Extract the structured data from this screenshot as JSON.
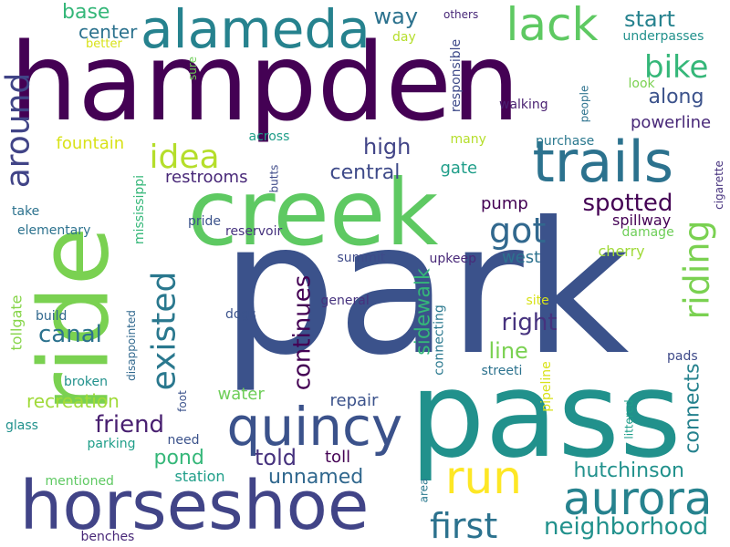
{
  "words": [
    {
      "text": "park",
      "color": "#3b528b"
    },
    {
      "text": "pass",
      "color": "#21918c"
    },
    {
      "text": "hampden",
      "color": "#440154"
    },
    {
      "text": "ride",
      "color": "#7ad151"
    },
    {
      "text": "creek",
      "color": "#5ec962"
    },
    {
      "text": "horseshoe",
      "color": "#414487"
    },
    {
      "text": "trails",
      "color": "#2c728e"
    },
    {
      "text": "alameda",
      "color": "#26828e"
    },
    {
      "text": "quincy",
      "color": "#3b528b"
    },
    {
      "text": "run",
      "color": "#fde725"
    },
    {
      "text": "aurora",
      "color": "#26828e"
    },
    {
      "text": "lack",
      "color": "#5ec962"
    },
    {
      "text": "existed",
      "color": "#2a788e"
    },
    {
      "text": "around",
      "color": "#414487"
    },
    {
      "text": "first",
      "color": "#2c728e"
    },
    {
      "text": "riding",
      "color": "#7ad151"
    },
    {
      "text": "got",
      "color": "#31688e"
    },
    {
      "text": "idea",
      "color": "#b5de2b"
    },
    {
      "text": "bike",
      "color": "#35b779"
    },
    {
      "text": "continues",
      "color": "#440154"
    },
    {
      "text": "friend",
      "color": "#481f70"
    },
    {
      "text": "neighborhood",
      "color": "#21918c"
    },
    {
      "text": "canal",
      "color": "#2c728e"
    },
    {
      "text": "right",
      "color": "#46327e"
    },
    {
      "text": "sidewalk",
      "color": "#35b779"
    },
    {
      "text": "spotted",
      "color": "#440154"
    },
    {
      "text": "hutchinson",
      "color": "#21918c"
    },
    {
      "text": "told",
      "color": "#46327e"
    },
    {
      "text": "unnamed",
      "color": "#31688e"
    },
    {
      "text": "connects",
      "color": "#26828e"
    },
    {
      "text": "line",
      "color": "#7ad151"
    },
    {
      "text": "high",
      "color": "#414487"
    },
    {
      "text": "central",
      "color": "#3e4a89"
    },
    {
      "text": "start",
      "color": "#26828e"
    },
    {
      "text": "along",
      "color": "#3b528b"
    },
    {
      "text": "way",
      "color": "#2c728e"
    },
    {
      "text": "base",
      "color": "#35b779"
    },
    {
      "text": "center",
      "color": "#2c728e"
    },
    {
      "text": "pond",
      "color": "#35b779"
    },
    {
      "text": "recreation",
      "color": "#a0da39"
    },
    {
      "text": "powerline",
      "color": "#482878"
    },
    {
      "text": "restrooms",
      "color": "#482878"
    },
    {
      "text": "fountain",
      "color": "#d8e219"
    },
    {
      "text": "repair",
      "color": "#3b528b"
    },
    {
      "text": "water",
      "color": "#6ece58"
    },
    {
      "text": "toll",
      "color": "#440154"
    },
    {
      "text": "gate",
      "color": "#1f9e89"
    },
    {
      "text": "pump",
      "color": "#440154"
    },
    {
      "text": "west",
      "color": "#2c728e"
    },
    {
      "text": "spillway",
      "color": "#440154"
    },
    {
      "text": "cherry",
      "color": "#a0da39"
    },
    {
      "text": "purchase",
      "color": "#2a788e"
    },
    {
      "text": "station",
      "color": "#1f9e89"
    },
    {
      "text": "tollgate",
      "color": "#86d549"
    },
    {
      "text": "mississippi",
      "color": "#35b779"
    },
    {
      "text": "build",
      "color": "#31688e"
    },
    {
      "text": "reservoir",
      "color": "#46327e"
    },
    {
      "text": "summit",
      "color": "#3e4a89"
    },
    {
      "text": "pipeline",
      "color": "#d8e219"
    },
    {
      "text": "connecting",
      "color": "#2a788e"
    },
    {
      "text": "responsible",
      "color": "#3e4a89"
    },
    {
      "text": "parking",
      "color": "#1f9e89"
    },
    {
      "text": "broken",
      "color": "#21918c"
    },
    {
      "text": "elementary",
      "color": "#2c728e"
    },
    {
      "text": "mentioned",
      "color": "#5ec962"
    },
    {
      "text": "dogs",
      "color": "#3b528b"
    },
    {
      "text": "general",
      "color": "#46327e"
    },
    {
      "text": "upkeep",
      "color": "#482878"
    },
    {
      "text": "disappointed",
      "color": "#31688e"
    },
    {
      "text": "walking",
      "color": "#481f70"
    },
    {
      "text": "many",
      "color": "#b5de2b"
    },
    {
      "text": "pride",
      "color": "#3b528b"
    },
    {
      "text": "damage",
      "color": "#6ece58"
    },
    {
      "text": "cigarette",
      "color": "#46327e"
    },
    {
      "text": "butts",
      "color": "#3e4a89"
    },
    {
      "text": "people",
      "color": "#2c728e"
    },
    {
      "text": "look",
      "color": "#7ad151"
    },
    {
      "text": "others",
      "color": "#482878"
    },
    {
      "text": "underpasses",
      "color": "#21918c"
    },
    {
      "text": "day",
      "color": "#b5de2b"
    },
    {
      "text": "better",
      "color": "#d8e219"
    },
    {
      "text": "sure",
      "color": "#6ece58"
    },
    {
      "text": "across",
      "color": "#1f9e89"
    },
    {
      "text": "take",
      "color": "#2c728e"
    },
    {
      "text": "site",
      "color": "#d8e219"
    },
    {
      "text": "streeti",
      "color": "#2c728e"
    },
    {
      "text": "pads",
      "color": "#3e4a89"
    },
    {
      "text": "foot",
      "color": "#3b528b"
    },
    {
      "text": "need",
      "color": "#3b528b"
    },
    {
      "text": "glass",
      "color": "#21918c"
    },
    {
      "text": "littered",
      "color": "#1f9e89"
    },
    {
      "text": "area",
      "color": "#2a788e"
    },
    {
      "text": "benches",
      "color": "#482878"
    }
  ]
}
